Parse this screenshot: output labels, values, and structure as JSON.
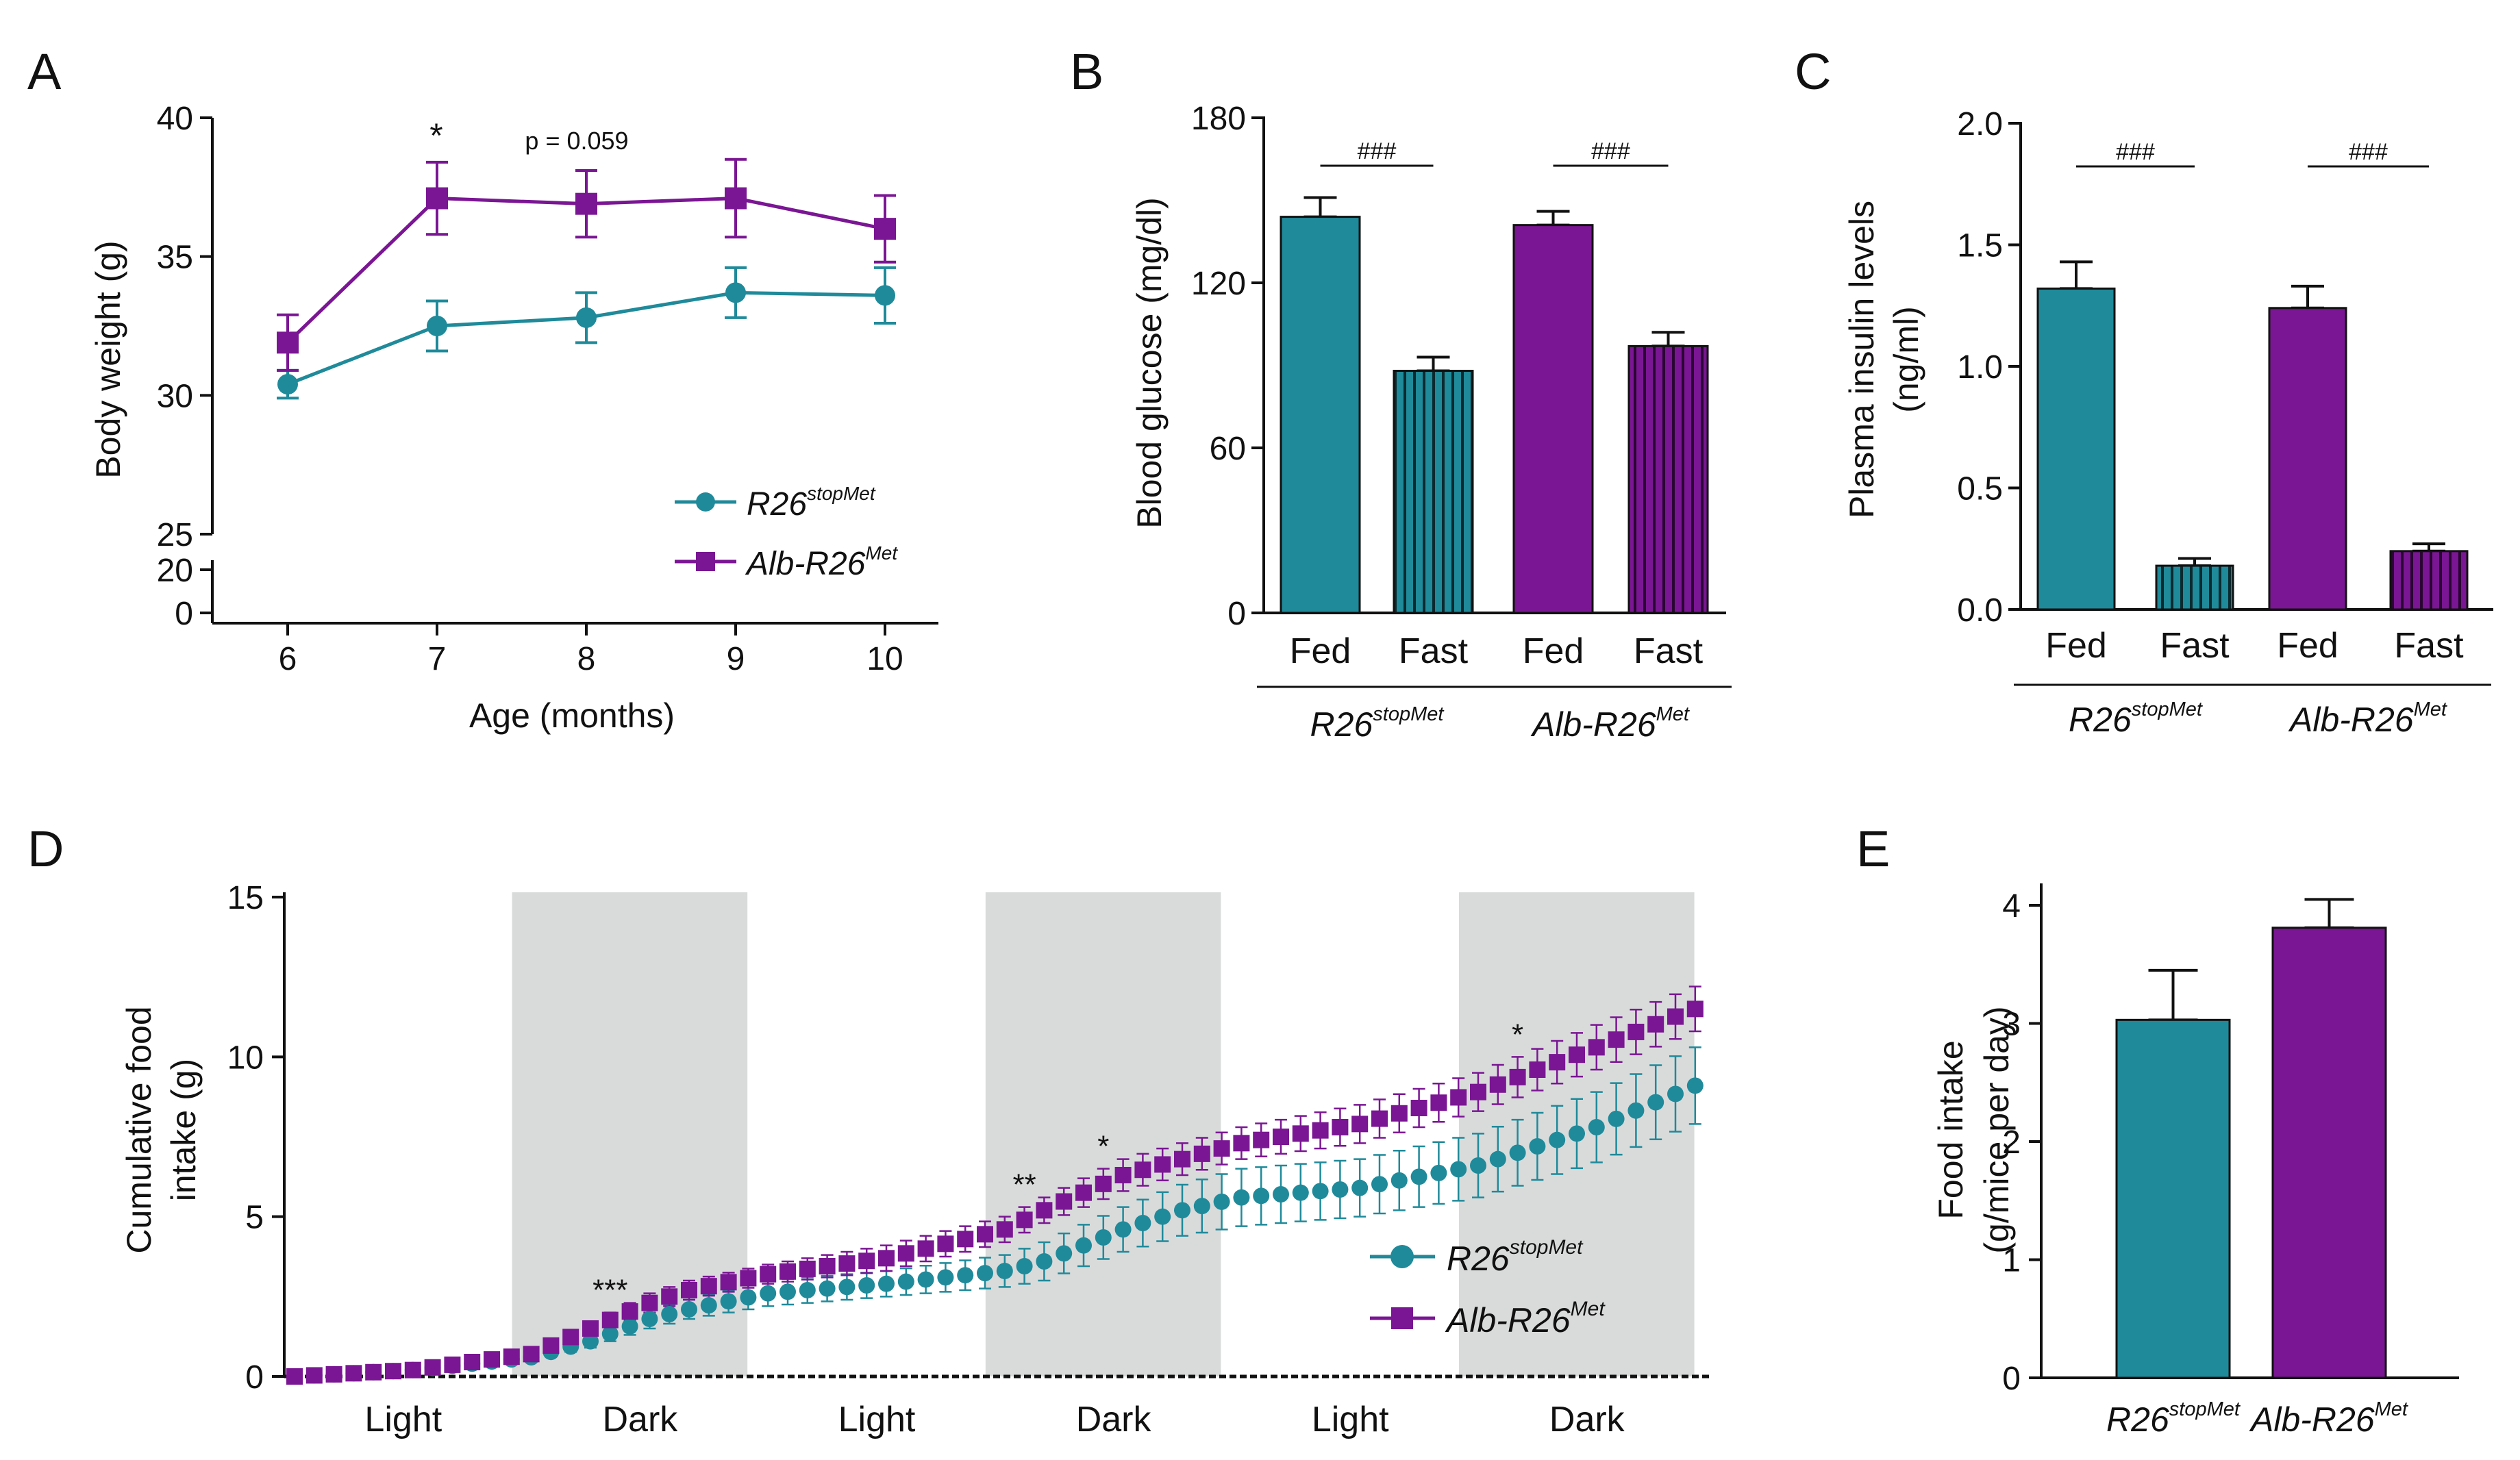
{
  "colors": {
    "teal": "#1f8a9a",
    "purple": "#7a1693",
    "dark_shade": "#d9dbdb"
  },
  "chart_data": [
    {
      "panel": "A",
      "type": "line",
      "xlabel": "Age (months)",
      "ylabel": "Body weight (g)",
      "x": [
        6,
        7,
        8,
        9,
        10
      ],
      "x_ticks": [
        "6",
        "7",
        "8",
        "9",
        "10"
      ],
      "y_ticks_upper": [
        "25",
        "30",
        "35",
        "40"
      ],
      "y_ticks_lower": [
        "0",
        "20"
      ],
      "ylim": [
        25,
        40
      ],
      "series": [
        {
          "name_main": "R26",
          "name_sup": "stopMet",
          "marker": "circle",
          "values": [
            30.4,
            32.5,
            32.8,
            33.7,
            33.6
          ],
          "errors": [
            0.5,
            0.9,
            0.9,
            0.9,
            1.0
          ]
        },
        {
          "name_main": "Alb-R26",
          "name_sup": "Met",
          "marker": "square",
          "values": [
            31.9,
            37.1,
            36.9,
            37.1,
            36.0
          ],
          "errors": [
            1.0,
            1.3,
            1.2,
            1.4,
            1.2
          ]
        }
      ],
      "annotations": {
        "star": "*",
        "pvalue": "p = 0.059"
      }
    },
    {
      "panel": "B",
      "type": "bar",
      "ylabel": "Blood glucose (mg/dl)",
      "ylim": [
        0,
        180
      ],
      "y_ticks": [
        "0",
        "60",
        "120",
        "180"
      ],
      "categories": [
        "Fed",
        "Fast",
        "Fed",
        "Fast"
      ],
      "groups": [
        {
          "main": "R26",
          "sup": "stopMet"
        },
        {
          "main": "Alb-R26",
          "sup": "Met"
        }
      ],
      "values": [
        144,
        88,
        141,
        97
      ],
      "errors": [
        7,
        5,
        5,
        5
      ],
      "sig": [
        "###",
        "###"
      ]
    },
    {
      "panel": "C",
      "type": "bar",
      "ylabel_line1": "Plasma insulin levels",
      "ylabel_line2": "(ng/ml)",
      "ylim": [
        0,
        2.0
      ],
      "y_ticks": [
        "0.0",
        "0.5",
        "1.0",
        "1.5",
        "2.0"
      ],
      "categories": [
        "Fed",
        "Fast",
        "Fed",
        "Fast"
      ],
      "groups": [
        {
          "main": "R26",
          "sup": "stopMet"
        },
        {
          "main": "Alb-R26",
          "sup": "Met"
        }
      ],
      "values": [
        1.32,
        0.18,
        1.24,
        0.24
      ],
      "errors": [
        0.11,
        0.03,
        0.09,
        0.03
      ],
      "sig": [
        "###",
        "###"
      ]
    },
    {
      "panel": "D",
      "type": "line",
      "ylabel_line1": "Cumulative food",
      "ylabel_line2": "intake (g)",
      "ylim": [
        0,
        15
      ],
      "y_ticks": [
        "0",
        "5",
        "10",
        "15"
      ],
      "x_range": [
        0,
        72
      ],
      "dark_periods": [
        [
          12,
          24
        ],
        [
          36,
          48
        ],
        [
          60,
          72
        ]
      ],
      "period_labels": [
        "Light",
        "Dark",
        "Light",
        "Dark",
        "Light",
        "Dark"
      ],
      "series": [
        {
          "name_main": "R26",
          "name_sup": "stopMet",
          "marker": "circle",
          "x": [
            0,
            6,
            12,
            15,
            18,
            20,
            24,
            30,
            36,
            38,
            42,
            45,
            48,
            54,
            60,
            66,
            71
          ],
          "values": [
            0,
            0.2,
            0.6,
            1.1,
            1.8,
            2.1,
            2.6,
            2.9,
            3.3,
            3.6,
            4.6,
            5.2,
            5.6,
            5.9,
            6.6,
            7.8,
            9.1
          ],
          "errors": [
            0,
            0.05,
            0.1,
            0.2,
            0.3,
            0.3,
            0.4,
            0.4,
            0.5,
            0.6,
            0.7,
            0.8,
            0.9,
            0.9,
            1.0,
            1.1,
            1.2
          ]
        },
        {
          "name_main": "Alb-R26",
          "name_sup": "Met",
          "marker": "square",
          "x": [
            0,
            6,
            12,
            15,
            18,
            20,
            24,
            30,
            36,
            38,
            42,
            45,
            48,
            54,
            60,
            66,
            71
          ],
          "values": [
            0,
            0.2,
            0.7,
            1.5,
            2.3,
            2.7,
            3.2,
            3.7,
            4.6,
            5.2,
            6.3,
            6.8,
            7.3,
            7.9,
            8.9,
            10.3,
            11.5
          ],
          "errors": [
            0,
            0.05,
            0.1,
            0.2,
            0.3,
            0.3,
            0.3,
            0.4,
            0.4,
            0.4,
            0.5,
            0.5,
            0.5,
            0.6,
            0.6,
            0.7,
            0.7
          ]
        }
      ],
      "sig_marks": [
        {
          "x": 16,
          "text": "***"
        },
        {
          "x": 37,
          "text": "**"
        },
        {
          "x": 41,
          "text": "*"
        },
        {
          "x": 62,
          "text": "*"
        }
      ]
    },
    {
      "panel": "E",
      "type": "bar",
      "ylabel_line1": "Food intake",
      "ylabel_line2": "(g/mice per day)",
      "ylim": [
        0,
        4
      ],
      "y_ticks": [
        "0",
        "1",
        "2",
        "3",
        "4"
      ],
      "categories": [
        {
          "main": "R26",
          "sup": "stopMet"
        },
        {
          "main": "Alb-R26",
          "sup": "Met"
        }
      ],
      "values": [
        3.03,
        3.81
      ],
      "errors": [
        0.42,
        0.24
      ]
    }
  ]
}
